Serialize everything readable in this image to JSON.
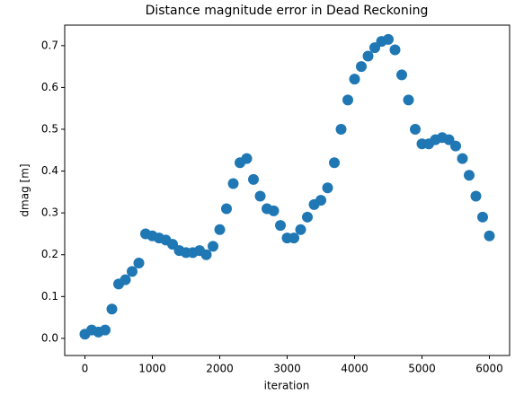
{
  "chart_data": {
    "type": "scatter",
    "title": "Distance magnitude error in Dead Reckoning",
    "xlabel": "iteration",
    "ylabel": "dmag [m]",
    "x": [
      0,
      100,
      200,
      300,
      400,
      500,
      600,
      700,
      800,
      900,
      1000,
      1100,
      1200,
      1300,
      1400,
      1500,
      1600,
      1700,
      1800,
      1900,
      2000,
      2100,
      2200,
      2300,
      2400,
      2500,
      2600,
      2700,
      2800,
      2900,
      3000,
      3100,
      3200,
      3300,
      3400,
      3500,
      3600,
      3700,
      3800,
      3900,
      4000,
      4100,
      4200,
      4300,
      4400,
      4500,
      4600,
      4700,
      4800,
      4900,
      5000,
      5100,
      5200,
      5300,
      5400,
      5500,
      5600,
      5700,
      5800,
      5900,
      6000
    ],
    "series": [
      {
        "name": "dmag",
        "color": "#1f77b4",
        "values": [
          0.01,
          0.02,
          0.015,
          0.02,
          0.07,
          0.13,
          0.14,
          0.16,
          0.18,
          0.25,
          0.245,
          0.24,
          0.235,
          0.225,
          0.21,
          0.205,
          0.205,
          0.21,
          0.2,
          0.22,
          0.26,
          0.31,
          0.37,
          0.42,
          0.43,
          0.38,
          0.34,
          0.31,
          0.305,
          0.27,
          0.24,
          0.24,
          0.26,
          0.29,
          0.32,
          0.33,
          0.36,
          0.42,
          0.5,
          0.57,
          0.62,
          0.65,
          0.675,
          0.695,
          0.71,
          0.715,
          0.69,
          0.63,
          0.57,
          0.5,
          0.465,
          0.465,
          0.475,
          0.48,
          0.475,
          0.46,
          0.43,
          0.39,
          0.34,
          0.29,
          0.245
        ]
      }
    ],
    "xlim": [
      -300,
      6300
    ],
    "xticks": [
      0,
      1000,
      2000,
      3000,
      4000,
      5000,
      6000
    ],
    "ylim": [
      -0.041,
      0.749
    ],
    "yticks": [
      {
        "value": 0,
        "label": "0.0"
      },
      0.1,
      0.2,
      0.3,
      0.4,
      0.5,
      0.6,
      0.7
    ]
  }
}
